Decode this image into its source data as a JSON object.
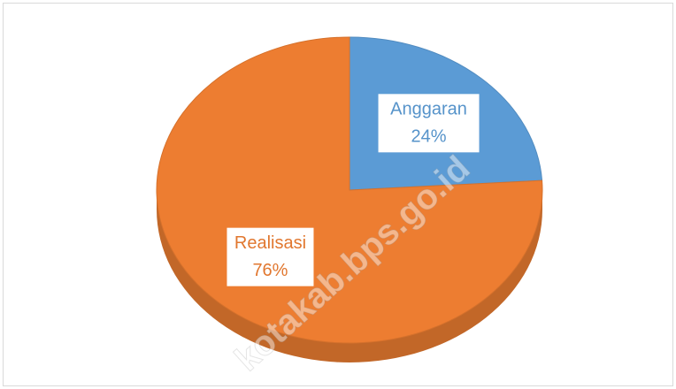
{
  "chart_data": {
    "type": "pie",
    "categories": [
      "Anggaran",
      "Realisasi"
    ],
    "values": [
      24,
      76
    ],
    "value_labels": [
      "24%",
      "76%"
    ],
    "colors": [
      "#5b9bd5",
      "#ed7d31"
    ],
    "watermark": "kotakab.bps.go.id"
  }
}
